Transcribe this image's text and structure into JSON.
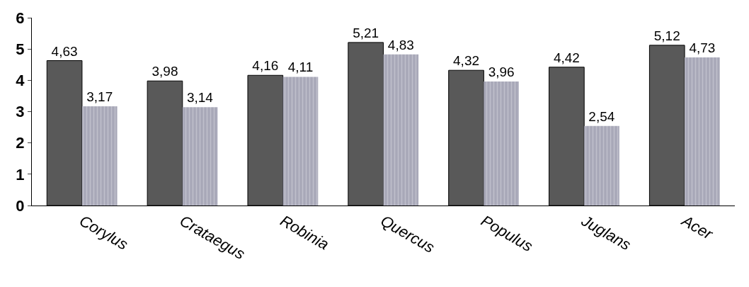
{
  "chart_data": {
    "type": "bar",
    "categories": [
      "Corylus",
      "Crataegus",
      "Robinia",
      "Quercus",
      "Populus",
      "Juglans",
      "Acer"
    ],
    "series": [
      {
        "color": "#595959",
        "values": [
          4.63,
          3.98,
          4.16,
          5.21,
          4.32,
          4.42,
          5.12
        ],
        "value_labels": [
          "4,63",
          "3,98",
          "4,16",
          "5,21",
          "4,32",
          "4,42",
          "5,12"
        ]
      },
      {
        "color": "#a8a8b8",
        "values": [
          3.17,
          3.14,
          4.11,
          4.83,
          3.96,
          2.54,
          4.73
        ],
        "value_labels": [
          "3,17",
          "3,14",
          "4,11",
          "4,83",
          "3,96",
          "2,54",
          "4,73"
        ]
      }
    ],
    "ylim": [
      0,
      6
    ],
    "yticks": [
      0,
      1,
      2,
      3,
      4,
      5,
      6
    ]
  }
}
